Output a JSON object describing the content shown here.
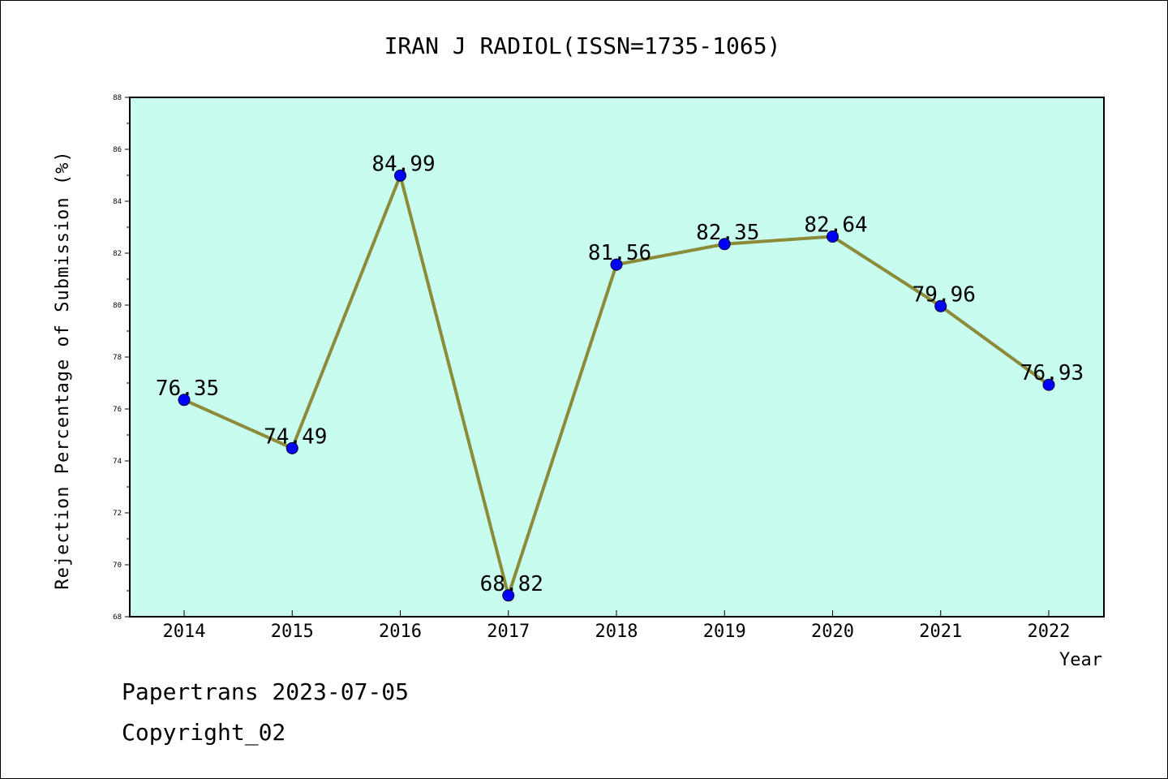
{
  "chart_data": {
    "type": "line",
    "title": "IRAN J RADIOL(ISSN=1735-1065)",
    "xlabel": "Year",
    "ylabel": "Rejection Percentage of Submission (%)",
    "x": [
      "2014",
      "2015",
      "2016",
      "2017",
      "2018",
      "2019",
      "2020",
      "2021",
      "2022"
    ],
    "values": [
      76.35,
      74.49,
      84.99,
      68.82,
      81.56,
      82.35,
      82.64,
      79.96,
      76.93
    ],
    "data_labels": [
      "76.35",
      "74.49",
      "84.99",
      "68.82",
      "81.56",
      "82.35",
      "82.64",
      "79.96",
      "76.93"
    ],
    "ylim": [
      68,
      88
    ],
    "yticks": [
      "68",
      "70",
      "72",
      "74",
      "76",
      "78",
      "80",
      "82",
      "84",
      "86",
      "88"
    ],
    "grid": false,
    "colors": {
      "plot_background": "#c8fcee",
      "line": "#8b8b3a",
      "marker": "#0000ff"
    }
  },
  "footer": {
    "line1": "Papertrans 2023-07-05",
    "line2": "Copyright_02"
  }
}
